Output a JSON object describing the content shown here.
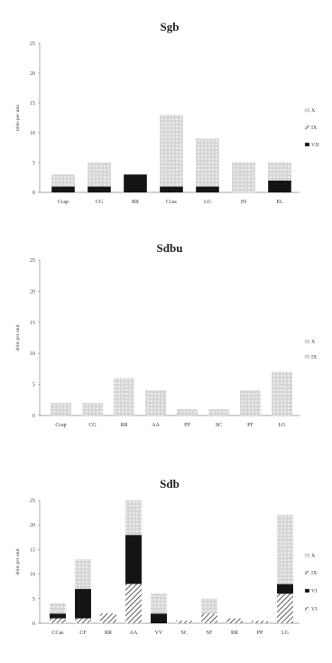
{
  "colors": {
    "solid": "#141414",
    "dots_fill": "#c9c9c9",
    "dots_stroke": "#d8d8d8",
    "hatch": "#333333",
    "axis": "#888888"
  },
  "chart_data": [
    {
      "type": "bar",
      "stacked": true,
      "title": "Sgb",
      "ylabel": "nbits per unit",
      "ylim": [
        0,
        25
      ],
      "yticks": [
        0,
        5,
        10,
        15,
        20,
        25
      ],
      "categories": [
        "Ccap",
        "CG",
        "RR",
        "Ccas",
        "LG",
        "IN",
        "EL"
      ],
      "legend": [
        "X",
        "IX",
        "VII"
      ],
      "series": [
        {
          "name": "VII",
          "pattern": "solid",
          "values": [
            1,
            1,
            3,
            1,
            1,
            0,
            2
          ]
        },
        {
          "name": "IX",
          "pattern": "dots",
          "values": [
            2,
            4,
            0,
            12,
            8,
            5,
            3
          ]
        }
      ]
    },
    {
      "type": "bar",
      "stacked": true,
      "title": "Sdbu",
      "ylabel": "nbits per unit",
      "ylim": [
        0,
        25
      ],
      "yticks": [
        0,
        5,
        10,
        15,
        20,
        25
      ],
      "categories": [
        "Ccap",
        "CG",
        "RR",
        "AA",
        "PP",
        "SC",
        "PF",
        "LG"
      ],
      "legend": [
        "X",
        "IX"
      ],
      "series": [
        {
          "name": "X",
          "pattern": "dots",
          "values": [
            2,
            2,
            6,
            4,
            1,
            1,
            4,
            7
          ]
        }
      ]
    },
    {
      "type": "bar",
      "stacked": true,
      "title": "Sdb",
      "ylabel": "nbits per unit",
      "ylim": [
        0,
        25
      ],
      "yticks": [
        0,
        5,
        10,
        15,
        20,
        25
      ],
      "categories": [
        "CCas",
        "CF",
        "RR",
        "AA",
        "VV",
        "SC",
        "SF",
        "RR",
        "PP",
        "LG"
      ],
      "legend": [
        "X",
        "IX",
        "VI",
        "VI"
      ],
      "series": [
        {
          "name": "VI-hatch",
          "pattern": "hatch",
          "values": [
            1,
            1,
            2,
            8,
            0,
            0.5,
            2,
            1,
            0.5,
            6
          ]
        },
        {
          "name": "VI-solid",
          "pattern": "solid",
          "values": [
            1,
            6,
            0,
            10,
            2,
            0,
            0,
            0,
            0,
            2
          ]
        },
        {
          "name": "IX",
          "pattern": "dots",
          "values": [
            2,
            6,
            0,
            7,
            4,
            0,
            3,
            0,
            0,
            14
          ]
        }
      ]
    }
  ]
}
